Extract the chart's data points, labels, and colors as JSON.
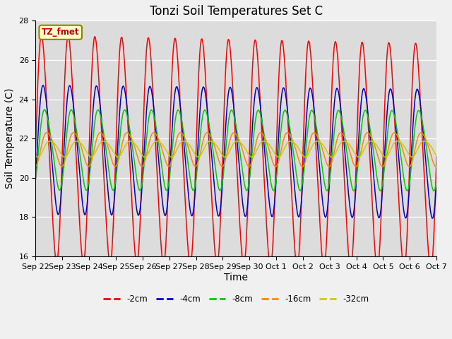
{
  "title": "Tonzi Soil Temperatures Set C",
  "xlabel": "Time",
  "ylabel": "Soil Temperature (C)",
  "ylim": [
    16,
    28
  ],
  "x_tick_labels": [
    "Sep 22",
    "Sep 23",
    "Sep 24",
    "Sep 25",
    "Sep 26",
    "Sep 27",
    "Sep 28",
    "Sep 29",
    "Sep 30",
    "Oct 1",
    "Oct 2",
    "Oct 3",
    "Oct 4",
    "Oct 5",
    "Oct 6",
    "Oct 7"
  ],
  "colors": {
    "-2cm": "#ff0000",
    "-4cm": "#0000cc",
    "-8cm": "#00cc00",
    "-16cm": "#ff8800",
    "-32cm": "#cccc00"
  },
  "legend_label_box": "TZ_fmet",
  "legend_box_bg": "#ffffcc",
  "legend_box_edge": "#888800",
  "plot_bg": "#dcdcdc",
  "fig_bg": "#f0f0f0",
  "title_fontsize": 12,
  "axis_label_fontsize": 10,
  "tick_fontsize": 8,
  "n_points": 1500,
  "period_days": 1.0,
  "base_temp": 21.5,
  "amp_2cm": 5.6,
  "amp_4cm": 3.2,
  "amp_8cm": 2.0,
  "amp_16cm": 0.85,
  "amp_32cm": 0.4,
  "phase_2cm": 0.0,
  "phase_4cm": 0.4,
  "phase_8cm": 0.75,
  "phase_16cm": 1.3,
  "phase_32cm": 2.0,
  "trend_all": -0.008
}
